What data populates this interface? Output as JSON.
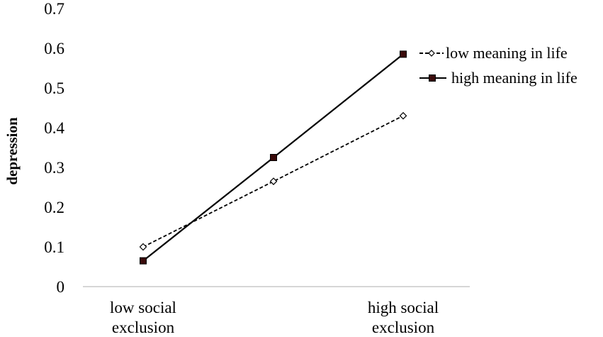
{
  "chart_data": {
    "type": "line",
    "categories": [
      "low social exclusion",
      "",
      "high social exclusion"
    ],
    "category_labels": [
      [
        "low social",
        "exclusion"
      ],
      [
        "high social",
        "exclusion"
      ]
    ],
    "ylabel": "depression",
    "ylim": [
      0,
      0.7
    ],
    "yticks": [
      "0",
      "0.1",
      "0.2",
      "0.3",
      "0.4",
      "0.5",
      "0.6",
      "0.7"
    ],
    "grid": false,
    "legend_position": "top-right",
    "series": [
      {
        "name": "low meaning in life",
        "values": [
          0.1,
          0.265,
          0.43
        ],
        "line_style": "dashed",
        "marker": "open-diamond",
        "color": "#000000"
      },
      {
        "name": "high meaning in life",
        "values": [
          0.065,
          0.325,
          0.585
        ],
        "line_style": "solid",
        "marker": "filled-square",
        "color": "#000000",
        "marker_fill": "#3a0a0a"
      }
    ]
  }
}
